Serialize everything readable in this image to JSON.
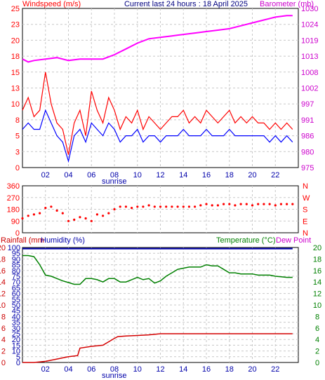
{
  "header": {
    "left": "Windspeed (m/s)",
    "center": "Current last 24 hours : 18 April 2025",
    "right": "Barometer (mb)"
  },
  "x_ticks": [
    "02",
    "04",
    "06",
    "08",
    "10",
    "12",
    "14",
    "16",
    "18",
    "20",
    "22"
  ],
  "sunrise_label": "sunrise",
  "colors": {
    "wind_gust": "#ff0000",
    "wind_avg": "#0000ff",
    "barometer": "#ff00ff",
    "direction": "#ff0000",
    "rainfall": "#d40000",
    "humidity": "#0000aa",
    "temperature": "#008000",
    "dewpoint": "#cc00cc",
    "grid": "#c8c8c8"
  },
  "chart_data": [
    {
      "type": "line",
      "name": "wind-barometer",
      "x_range_hours": [
        0,
        24
      ],
      "left_axis": {
        "label": "Windspeed (m/s)",
        "ylim": [
          0,
          25
        ],
        "ticks": [
          "0",
          "3",
          "5",
          "8",
          "10",
          "13",
          "15",
          "18",
          "20",
          "23",
          "25"
        ]
      },
      "right_axis": {
        "label": "Barometer (mb)",
        "ylim": [
          975,
          1030
        ],
        "ticks": [
          "975",
          "980",
          "986",
          "991",
          "997",
          "1002",
          "1008",
          "1013",
          "1019",
          "1024",
          "1030"
        ]
      },
      "series": [
        {
          "name": "gust",
          "axis": "left",
          "x": [
            0,
            0.5,
            1,
            1.5,
            2,
            2.5,
            3,
            3.5,
            4,
            4.5,
            5,
            5.5,
            6,
            6.5,
            7,
            7.5,
            8,
            8.5,
            9,
            9.5,
            10,
            10.5,
            11,
            11.5,
            12,
            12.5,
            13,
            13.5,
            14,
            14.5,
            15,
            15.5,
            16,
            16.5,
            17,
            17.5,
            18,
            18.5,
            19,
            19.5,
            20,
            20.5,
            21,
            21.5,
            22,
            22.5,
            23,
            23.5
          ],
          "values": [
            9,
            11,
            8,
            9,
            15,
            10,
            7,
            6,
            2,
            7,
            9,
            5,
            12,
            9,
            7,
            11,
            9,
            6,
            8,
            7,
            9,
            6,
            8,
            7,
            6,
            7,
            8,
            8,
            9,
            7,
            8,
            7,
            9,
            8,
            7,
            8,
            9,
            7,
            8,
            7,
            8,
            7,
            7,
            6,
            7,
            6,
            7,
            6
          ]
        },
        {
          "name": "average",
          "axis": "left",
          "x": [
            0,
            0.5,
            1,
            1.5,
            2,
            2.5,
            3,
            3.5,
            4,
            4.5,
            5,
            5.5,
            6,
            6.5,
            7,
            7.5,
            8,
            8.5,
            9,
            9.5,
            10,
            10.5,
            11,
            11.5,
            12,
            12.5,
            13,
            13.5,
            14,
            14.5,
            15,
            15.5,
            16,
            16.5,
            17,
            17.5,
            18,
            18.5,
            19,
            19.5,
            20,
            20.5,
            21,
            21.5,
            22,
            22.5,
            23,
            23.5
          ],
          "values": [
            6,
            7,
            6,
            6,
            9,
            7,
            5,
            4,
            1,
            5,
            6,
            4,
            7,
            6,
            5,
            7,
            6,
            4,
            5,
            5,
            6,
            4,
            5,
            5,
            4,
            5,
            5,
            5,
            6,
            5,
            5,
            5,
            6,
            5,
            5,
            5,
            6,
            5,
            5,
            5,
            5,
            5,
            5,
            4,
            5,
            4,
            5,
            4
          ]
        },
        {
          "name": "barometer",
          "axis": "right",
          "x": [
            0,
            0.5,
            1,
            2,
            3,
            4,
            5,
            6,
            7,
            8,
            9,
            10,
            11,
            12,
            13,
            14,
            15,
            16,
            17,
            18,
            19,
            20,
            21,
            22,
            23,
            23.5
          ],
          "values": [
            1012.5,
            1011.5,
            1012,
            1012.5,
            1013,
            1012,
            1012.5,
            1012.5,
            1012.5,
            1014,
            1016,
            1018,
            1019.5,
            1020,
            1020.5,
            1021,
            1021.5,
            1022,
            1022.5,
            1023,
            1024,
            1025,
            1026,
            1027,
            1027.5,
            1027.5
          ]
        }
      ]
    },
    {
      "type": "scatter",
      "name": "wind-direction",
      "x_range_hours": [
        0,
        24
      ],
      "ylim": [
        0,
        360
      ],
      "left_ticks": [
        "360",
        "270",
        "180",
        "90",
        "0"
      ],
      "right_ticks": [
        "N",
        "W",
        "S",
        "E",
        "N"
      ],
      "series": [
        {
          "name": "direction",
          "x": [
            0,
            0.5,
            1,
            1.5,
            2,
            2.5,
            3,
            3.5,
            4,
            4.5,
            5,
            5.5,
            6,
            6.5,
            7,
            7.5,
            8,
            8.5,
            9,
            9.5,
            10,
            10.5,
            11,
            11.5,
            12,
            12.5,
            13,
            13.5,
            14,
            14.5,
            15,
            15.5,
            16,
            16.5,
            17,
            17.5,
            18,
            18.5,
            19,
            19.5,
            20,
            20.5,
            21,
            21.5,
            22,
            22.5,
            23,
            23.5
          ],
          "values": [
            110,
            130,
            140,
            150,
            190,
            200,
            170,
            150,
            90,
            100,
            120,
            110,
            90,
            140,
            130,
            150,
            180,
            200,
            200,
            190,
            200,
            200,
            210,
            200,
            200,
            200,
            200,
            200,
            200,
            200,
            200,
            210,
            220,
            210,
            210,
            220,
            220,
            210,
            220,
            220,
            210,
            220,
            220,
            220,
            210,
            220,
            220,
            220
          ]
        }
      ]
    },
    {
      "type": "line",
      "name": "rain-humidity-temperature",
      "x_range_hours": [
        0,
        24
      ],
      "left_axis": {
        "label": "Rainfall (mm) / Humidity (%)",
        "ylim": [
          0,
          100
        ],
        "ticks": [
          "0",
          "5",
          "10",
          "15",
          "20",
          "25",
          "30",
          "35",
          "40",
          "45",
          "50",
          "55",
          "60",
          "65",
          "70",
          "75",
          "80",
          "85",
          "90",
          "95",
          "100"
        ],
        "rain_ticks": [
          "0",
          "2",
          "4",
          "6",
          "8",
          "10",
          "12",
          "14",
          "16",
          "18",
          "20"
        ]
      },
      "right_axis": {
        "label": "Temperature (°C)",
        "ylim": [
          0,
          20
        ],
        "ticks": [
          "0",
          "2",
          "4",
          "6",
          "8",
          "10",
          "12",
          "14",
          "16",
          "18",
          "20"
        ]
      },
      "legend": {
        "rainfall": "Rainfall (mm",
        "humidity": "Humidity (%)",
        "temperature": "Temperature (°C)",
        "dewpoint": "Dew Point"
      },
      "series": [
        {
          "name": "rainfall",
          "axis": "rain",
          "x": [
            0,
            1,
            2,
            3,
            4,
            4.8,
            5,
            6,
            7,
            7.5,
            8,
            8.3,
            9,
            10,
            11,
            12,
            13,
            14,
            15,
            16,
            17,
            18,
            19,
            20,
            21,
            22,
            23,
            23.5
          ],
          "values": [
            0,
            0,
            0.2,
            0.6,
            1.0,
            1.2,
            2.5,
            2.8,
            3.0,
            3.6,
            4.2,
            4.5,
            4.6,
            4.7,
            4.8,
            5.0,
            5.0,
            5.0,
            5.0,
            5.0,
            5.0,
            5.0,
            5.0,
            5.0,
            5.0,
            5.0,
            5.0,
            5.0
          ]
        },
        {
          "name": "humidity",
          "axis": "left",
          "x": [
            0,
            23.5
          ],
          "values": [
            99,
            99
          ]
        },
        {
          "name": "temperature",
          "axis": "right",
          "x": [
            0,
            0.5,
            1,
            1.5,
            2,
            2.5,
            3,
            3.5,
            4,
            4.5,
            5,
            5.5,
            6,
            6.5,
            7,
            7.5,
            8,
            8.5,
            9,
            9.5,
            10,
            10.5,
            11,
            11.5,
            12,
            12.5,
            13,
            13.5,
            14,
            14.5,
            15,
            15.5,
            16,
            16.5,
            17,
            17.5,
            18,
            18.5,
            19,
            19.5,
            20,
            20.5,
            21,
            21.5,
            22,
            22.5,
            23,
            23.5
          ],
          "values": [
            18.6,
            18.6,
            18.4,
            17,
            15.2,
            15.0,
            14.6,
            14.2,
            13.9,
            13.6,
            13.6,
            14.6,
            14.6,
            14.4,
            14,
            14.6,
            14.6,
            14,
            14,
            14.4,
            14.8,
            14.4,
            14.6,
            13.8,
            14.2,
            15,
            15.6,
            16.2,
            16.4,
            16.6,
            16.6,
            16.6,
            17.0,
            16.8,
            16.8,
            16.2,
            15.6,
            15.6,
            15.4,
            15.4,
            15.4,
            15.2,
            15.2,
            15.2,
            15.0,
            14.9,
            14.8,
            14.8
          ]
        }
      ]
    }
  ]
}
